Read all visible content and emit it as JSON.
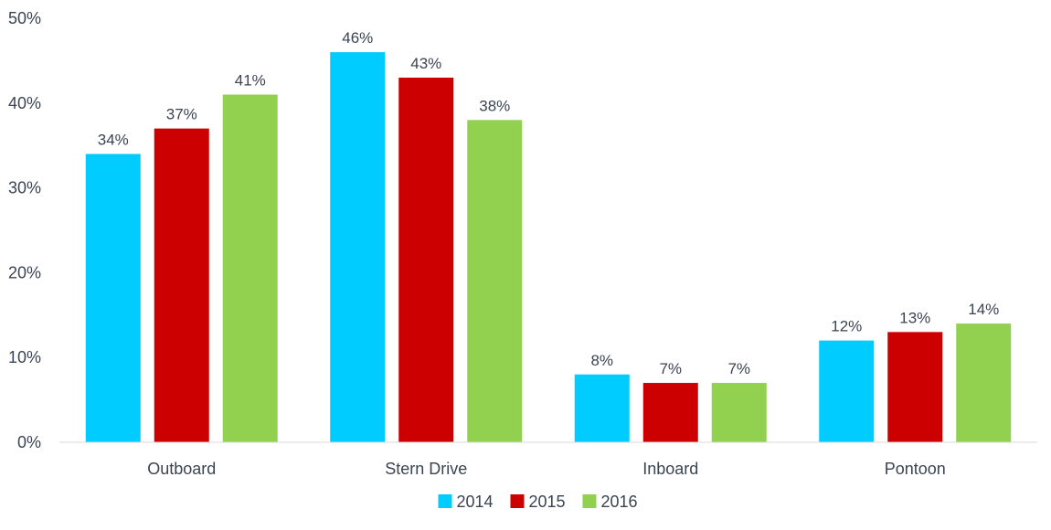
{
  "chart_data": {
    "type": "bar",
    "categories": [
      "Outboard",
      "Stern Drive",
      "Inboard",
      "Pontoon"
    ],
    "series": [
      {
        "name": "2014",
        "color": "#00ccff",
        "values": [
          34,
          46,
          8,
          12
        ],
        "labels": [
          "34%",
          "46%",
          "8%",
          "12%"
        ]
      },
      {
        "name": "2015",
        "color": "#cc0000",
        "values": [
          37,
          43,
          7,
          13
        ],
        "labels": [
          "37%",
          "43%",
          "7%",
          "13%"
        ]
      },
      {
        "name": "2016",
        "color": "#92d050",
        "values": [
          41,
          38,
          7,
          14
        ],
        "labels": [
          "41%",
          "38%",
          "7%",
          "14%"
        ]
      }
    ],
    "ylim": [
      0,
      50
    ],
    "yticks": [
      "0%",
      "10%",
      "20%",
      "30%",
      "40%",
      "50%"
    ],
    "ytick_values": [
      0,
      10,
      20,
      30,
      40,
      50
    ],
    "grid": false,
    "legend_position": "bottom"
  }
}
